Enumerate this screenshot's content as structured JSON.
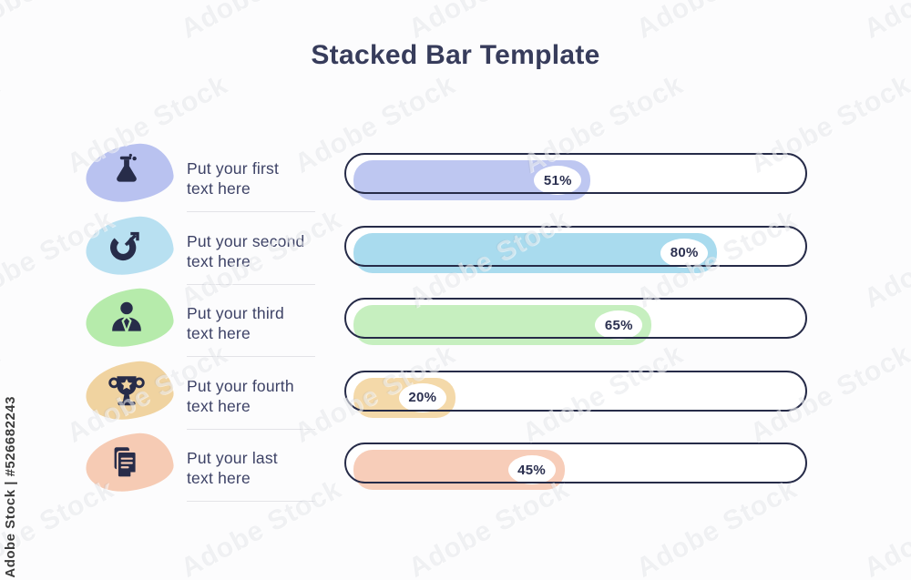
{
  "title": "Stacked Bar Template",
  "watermark": {
    "tile_text": "Adobe Stock",
    "side_text": "Adobe Stock | #526682243"
  },
  "colors": {
    "ink_navy": "#272c49",
    "text_navy": "#3d4266",
    "bar_outline": "#262b48",
    "background": "#fcfcfd"
  },
  "rows": [
    {
      "icon": "flask-icon",
      "label_line1": "Put your first",
      "label_line2": "text here",
      "percent": 51,
      "percent_label": "51%",
      "fill_color": "#bec7f1",
      "blob_color": "#b9c2f0"
    },
    {
      "icon": "pie-chart-icon",
      "label_line1": "Put your second",
      "label_line2": "text here",
      "percent": 80,
      "percent_label": "80%",
      "fill_color": "#a9dbee",
      "blob_color": "#b8e0f1"
    },
    {
      "icon": "person-icon",
      "label_line1": "Put your third",
      "label_line2": "text here",
      "percent": 65,
      "percent_label": "65%",
      "fill_color": "#c6efbf",
      "blob_color": "#b6ebab"
    },
    {
      "icon": "trophy-icon",
      "label_line1": "Put your fourth",
      "label_line2": "text here",
      "percent": 20,
      "percent_label": "20%",
      "fill_color": "#f4d9a9",
      "blob_color": "#f0d3a0"
    },
    {
      "icon": "documents-icon",
      "label_line1": "Put your last",
      "label_line2": "text here",
      "percent": 45,
      "percent_label": "45%",
      "fill_color": "#f7cdb9",
      "blob_color": "#f6cbb4"
    }
  ],
  "chart_data": {
    "type": "bar",
    "orientation": "horizontal",
    "title": "Stacked Bar Template",
    "categories": [
      "Put your first text here",
      "Put your second text here",
      "Put your third text here",
      "Put your fourth text here",
      "Put your last text here"
    ],
    "values": [
      51,
      80,
      65,
      20,
      45
    ],
    "value_unit": "%",
    "xlim": [
      0,
      100
    ],
    "grid": false,
    "legend": false,
    "data_labels": [
      "51%",
      "80%",
      "65%",
      "20%",
      "45%"
    ]
  }
}
